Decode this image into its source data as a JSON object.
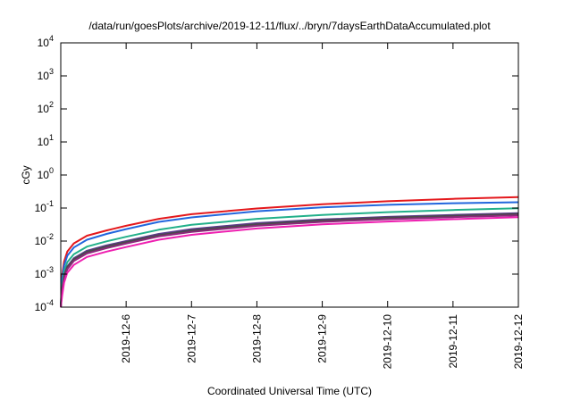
{
  "chart_data": {
    "type": "line",
    "title": "/data/run/goesPlots/archive/2019-12-11/flux/../bryn/7daysEarthDataAccumulated.plot",
    "xlabel": "Coordinated Universal Time (UTC)",
    "ylabel": "cGy",
    "yscale": "log",
    "ylim": [
      0.0001,
      10000
    ],
    "xlim": [
      "2019-12-05",
      "2019-12-12"
    ],
    "y_ticks": [
      {
        "value": 0.0001,
        "base": "10",
        "exp": "-4"
      },
      {
        "value": 0.001,
        "base": "10",
        "exp": "-3"
      },
      {
        "value": 0.01,
        "base": "10",
        "exp": "-2"
      },
      {
        "value": 0.1,
        "base": "10",
        "exp": "-1"
      },
      {
        "value": 1,
        "base": "10",
        "exp": "0"
      },
      {
        "value": 10,
        "base": "10",
        "exp": "1"
      },
      {
        "value": 100,
        "base": "10",
        "exp": "2"
      },
      {
        "value": 1000,
        "base": "10",
        "exp": "3"
      },
      {
        "value": 10000,
        "base": "10",
        "exp": "4"
      }
    ],
    "x_ticks": [
      "2019-12-6",
      "2019-12-7",
      "2019-12-8",
      "2019-12-9",
      "2019-12-10",
      "2019-12-11",
      "2019-12-12"
    ],
    "grid": false,
    "x": [
      0.0,
      0.02,
      0.05,
      0.1,
      0.2,
      0.4,
      0.7,
      1.0,
      1.5,
      2.0,
      3.0,
      4.0,
      5.0,
      6.0,
      7.0
    ],
    "series": [
      {
        "color": "#e4181c",
        "values": [
          0.0001,
          0.0009,
          0.0024,
          0.0048,
          0.0085,
          0.0145,
          0.021,
          0.029,
          0.047,
          0.065,
          0.097,
          0.13,
          0.16,
          0.19,
          0.215
        ]
      },
      {
        "color": "#2266dd",
        "values": [
          0.0001,
          0.0007,
          0.0018,
          0.0036,
          0.0064,
          0.011,
          0.0165,
          0.023,
          0.038,
          0.052,
          0.08,
          0.105,
          0.125,
          0.14,
          0.15
        ]
      },
      {
        "color": "#22b08a",
        "values": [
          0.0001,
          0.0005,
          0.0012,
          0.0023,
          0.004,
          0.0068,
          0.0098,
          0.0135,
          0.022,
          0.031,
          0.047,
          0.062,
          0.075,
          0.087,
          0.098
        ]
      },
      {
        "color": "#5b3a8a",
        "values": [
          0.0001,
          0.00038,
          0.0009,
          0.0017,
          0.003,
          0.0051,
          0.0074,
          0.01,
          0.0165,
          0.023,
          0.035,
          0.045,
          0.054,
          0.062,
          0.07
        ]
      },
      {
        "color": "#4a4a4a",
        "values": [
          0.0001,
          0.00034,
          0.00082,
          0.0016,
          0.0028,
          0.0047,
          0.0068,
          0.0093,
          0.015,
          0.021,
          0.032,
          0.042,
          0.051,
          0.058,
          0.066
        ]
      },
      {
        "color": "#8a2a7a",
        "values": [
          0.0001,
          0.0003,
          0.00072,
          0.0014,
          0.0025,
          0.0042,
          0.0061,
          0.0084,
          0.0138,
          0.019,
          0.029,
          0.038,
          0.046,
          0.053,
          0.06
        ]
      },
      {
        "color": "#ee1fb0",
        "values": [
          0.0001,
          0.00022,
          0.00055,
          0.0011,
          0.0019,
          0.0033,
          0.0048,
          0.0066,
          0.011,
          0.0155,
          0.024,
          0.032,
          0.039,
          0.046,
          0.053
        ]
      }
    ]
  }
}
